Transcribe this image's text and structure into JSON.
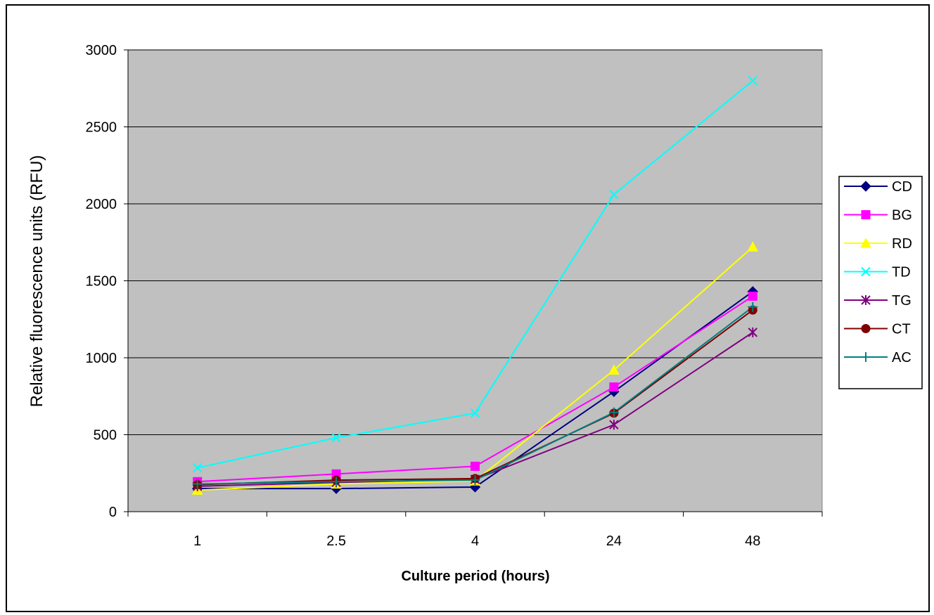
{
  "chart_data": {
    "type": "line",
    "title": "",
    "xlabel": "Culture period (hours)",
    "ylabel": "Relative fluorescence units (RFU)",
    "categories": [
      "1",
      "2.5",
      "4",
      "24",
      "48"
    ],
    "ylim": [
      0,
      3000
    ],
    "yticks": [
      0,
      500,
      1000,
      1500,
      2000,
      2500,
      3000
    ],
    "grid": "horizontal",
    "plot_background": "#c0c0c0",
    "legend_position": "right",
    "series": [
      {
        "name": "CD",
        "color": "#000080",
        "marker": "diamond",
        "values": [
          150,
          150,
          160,
          780,
          1430
        ]
      },
      {
        "name": "BG",
        "color": "#ff00ff",
        "marker": "square",
        "values": [
          195,
          245,
          295,
          810,
          1400
        ]
      },
      {
        "name": "RD",
        "color": "#ffff00",
        "marker": "triangle",
        "values": [
          140,
          180,
          200,
          920,
          1720
        ]
      },
      {
        "name": "TD",
        "color": "#00ffff",
        "marker": "x",
        "values": [
          285,
          480,
          640,
          2060,
          2800
        ]
      },
      {
        "name": "TG",
        "color": "#800080",
        "marker": "star",
        "values": [
          165,
          190,
          210,
          565,
          1165
        ]
      },
      {
        "name": "CT",
        "color": "#800000",
        "marker": "circle",
        "values": [
          175,
          205,
          215,
          640,
          1310
        ]
      },
      {
        "name": "AC",
        "color": "#008080",
        "marker": "plus",
        "values": [
          180,
          195,
          205,
          645,
          1330
        ]
      }
    ]
  }
}
